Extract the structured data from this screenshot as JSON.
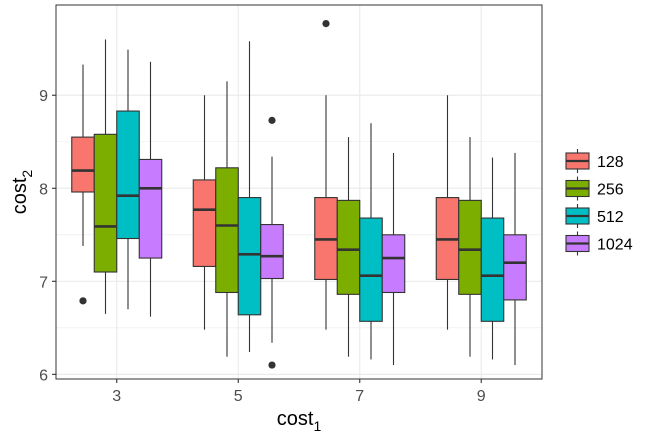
{
  "chart_data": {
    "type": "boxplot",
    "xlabel": {
      "main": "cost",
      "sub": "1"
    },
    "ylabel": {
      "main": "cost",
      "sub": "2"
    },
    "categories": [
      "3",
      "5",
      "7",
      "9"
    ],
    "ylim": [
      5.95,
      9.97
    ],
    "y_ticks": [
      6,
      7,
      8,
      9
    ],
    "grid": true,
    "legend_position": "right",
    "series": [
      {
        "name": "128",
        "color": "#F8766D",
        "boxes": [
          {
            "category": "3",
            "lower_whisker": 7.38,
            "q1": 7.96,
            "median": 8.19,
            "q3": 8.55,
            "upper_whisker": 9.33,
            "outliers": [
              6.79
            ]
          },
          {
            "category": "5",
            "lower_whisker": 6.48,
            "q1": 7.16,
            "median": 7.77,
            "q3": 8.09,
            "upper_whisker": 9.0,
            "outliers": []
          },
          {
            "category": "7",
            "lower_whisker": 6.48,
            "q1": 7.02,
            "median": 7.45,
            "q3": 7.9,
            "upper_whisker": 9.0,
            "outliers": [
              9.77
            ]
          },
          {
            "category": "9",
            "lower_whisker": 6.48,
            "q1": 7.02,
            "median": 7.45,
            "q3": 7.9,
            "upper_whisker": 9.0,
            "outliers": []
          }
        ]
      },
      {
        "name": "256",
        "color": "#7CAE00",
        "boxes": [
          {
            "category": "3",
            "lower_whisker": 6.65,
            "q1": 7.1,
            "median": 7.59,
            "q3": 8.58,
            "upper_whisker": 9.6,
            "outliers": []
          },
          {
            "category": "5",
            "lower_whisker": 6.19,
            "q1": 6.88,
            "median": 7.6,
            "q3": 8.22,
            "upper_whisker": 9.15,
            "outliers": []
          },
          {
            "category": "7",
            "lower_whisker": 6.19,
            "q1": 6.86,
            "median": 7.34,
            "q3": 7.87,
            "upper_whisker": 8.55,
            "outliers": []
          },
          {
            "category": "9",
            "lower_whisker": 6.19,
            "q1": 6.86,
            "median": 7.34,
            "q3": 7.87,
            "upper_whisker": 8.55,
            "outliers": []
          }
        ]
      },
      {
        "name": "512",
        "color": "#00BFC4",
        "boxes": [
          {
            "category": "3",
            "lower_whisker": 6.7,
            "q1": 7.46,
            "median": 7.92,
            "q3": 8.83,
            "upper_whisker": 9.49,
            "outliers": []
          },
          {
            "category": "5",
            "lower_whisker": 6.24,
            "q1": 6.64,
            "median": 7.29,
            "q3": 7.9,
            "upper_whisker": 9.58,
            "outliers": []
          },
          {
            "category": "7",
            "lower_whisker": 6.16,
            "q1": 6.57,
            "median": 7.06,
            "q3": 7.68,
            "upper_whisker": 8.7,
            "outliers": []
          },
          {
            "category": "9",
            "lower_whisker": 6.16,
            "q1": 6.57,
            "median": 7.06,
            "q3": 7.68,
            "upper_whisker": 8.33,
            "outliers": []
          }
        ]
      },
      {
        "name": "1024",
        "color": "#C77CFF",
        "boxes": [
          {
            "category": "3",
            "lower_whisker": 6.62,
            "q1": 7.25,
            "median": 8.0,
            "q3": 8.31,
            "upper_whisker": 9.36,
            "outliers": []
          },
          {
            "category": "5",
            "lower_whisker": 6.34,
            "q1": 7.03,
            "median": 7.27,
            "q3": 7.61,
            "upper_whisker": 8.34,
            "outliers": [
              8.73,
              6.1
            ]
          },
          {
            "category": "7",
            "lower_whisker": 6.1,
            "q1": 6.88,
            "median": 7.25,
            "q3": 7.5,
            "upper_whisker": 8.38,
            "outliers": []
          },
          {
            "category": "9",
            "lower_whisker": 6.1,
            "q1": 6.8,
            "median": 7.2,
            "q3": 7.5,
            "upper_whisker": 8.38,
            "outliers": []
          }
        ]
      }
    ]
  }
}
